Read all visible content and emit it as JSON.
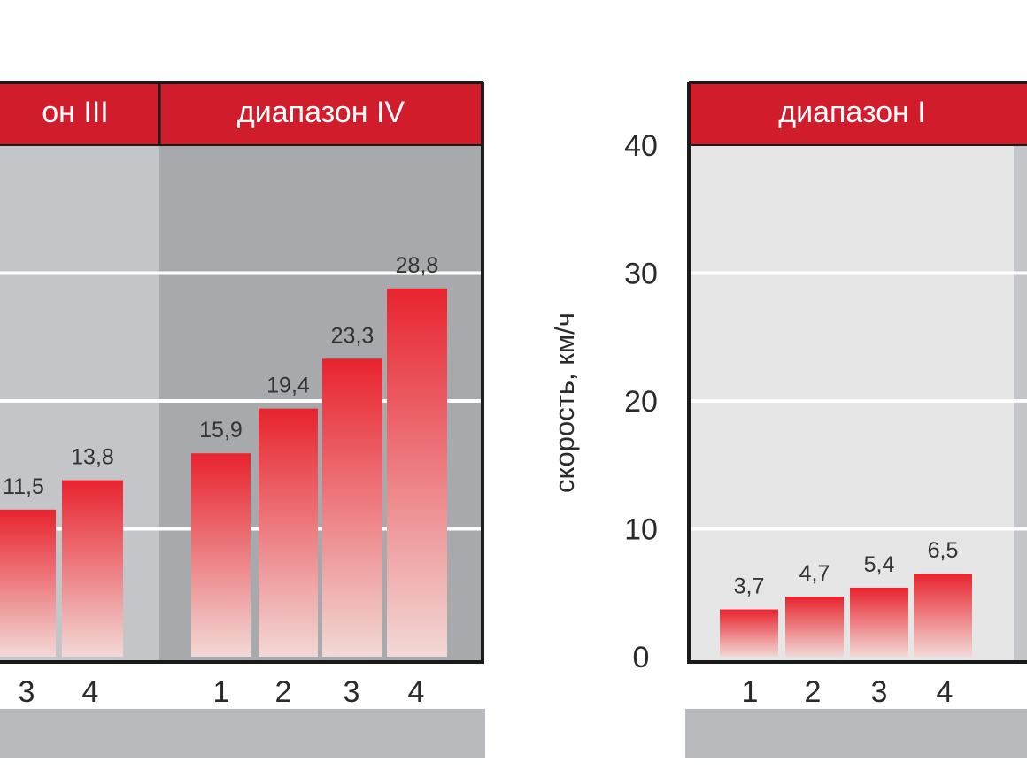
{
  "colors": {
    "header": "#d11c2c",
    "bar_top": "#e8232e",
    "bar_bottom": "#f2d9d6",
    "panel_light": "#e6e6e6",
    "panel_mid": "#c4c5c8",
    "panel_dark": "#a8a9ad",
    "frame": "#1a1a1a",
    "footer": "#b9babd"
  },
  "chart_data": [
    {
      "type": "bar",
      "ylabel": "",
      "ylim": [
        0,
        40
      ],
      "gridlines": [
        10,
        20,
        30
      ],
      "groups": [
        {
          "header": "он III",
          "categories": [
            "3",
            "4"
          ],
          "values": [
            11.5,
            13.8
          ],
          "value_labels": [
            "11,5",
            "13,8"
          ]
        },
        {
          "header": "диапазон IV",
          "categories": [
            "1",
            "2",
            "3",
            "4"
          ],
          "values": [
            15.9,
            19.4,
            23.3,
            28.8
          ],
          "value_labels": [
            "15,9",
            "19,4",
            "23,3",
            "28,8"
          ]
        }
      ]
    },
    {
      "type": "bar",
      "ylabel": "скорость, км/ч",
      "ylim": [
        0,
        40
      ],
      "yticks": [
        "0",
        "10",
        "20",
        "30",
        "40"
      ],
      "gridlines": [
        10,
        20,
        30
      ],
      "groups": [
        {
          "header": "диапазон I",
          "categories": [
            "1",
            "2",
            "3",
            "4"
          ],
          "values": [
            3.7,
            4.7,
            5.4,
            6.5
          ],
          "value_labels": [
            "3,7",
            "4,7",
            "5,4",
            "6,5"
          ]
        }
      ]
    }
  ]
}
